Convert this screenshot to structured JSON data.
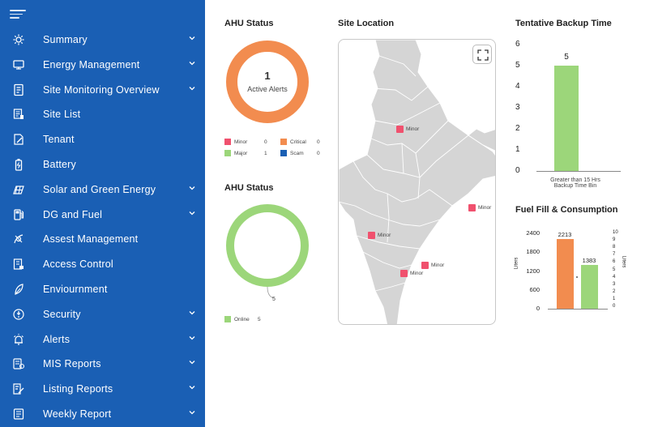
{
  "sidebar": {
    "items": [
      {
        "label": "Summary",
        "icon": "gear-icon",
        "has_chevron": true
      },
      {
        "label": "Energy Management",
        "icon": "energy-monitor-icon",
        "has_chevron": true
      },
      {
        "label": "Site Monitoring Overview",
        "icon": "document-icon",
        "has_chevron": true
      },
      {
        "label": "Site List",
        "icon": "list-icon",
        "has_chevron": false
      },
      {
        "label": "Tenant",
        "icon": "edit-document-icon",
        "has_chevron": false
      },
      {
        "label": "Battery",
        "icon": "battery-icon",
        "has_chevron": false
      },
      {
        "label": "Solar and Green Energy",
        "icon": "solar-icon",
        "has_chevron": true
      },
      {
        "label": "DG and Fuel",
        "icon": "fuel-icon",
        "has_chevron": true
      },
      {
        "label": "Assest Management",
        "icon": "satellite-icon",
        "has_chevron": false
      },
      {
        "label": "Access Control",
        "icon": "access-icon",
        "has_chevron": false
      },
      {
        "label": "Enviournment",
        "icon": "leaf-icon",
        "has_chevron": false
      },
      {
        "label": "Security",
        "icon": "security-icon",
        "has_chevron": true
      },
      {
        "label": "Alerts",
        "icon": "alarm-icon",
        "has_chevron": true
      },
      {
        "label": "MIS Reports",
        "icon": "report-icon",
        "has_chevron": true
      },
      {
        "label": "Listing Reports",
        "icon": "edit-list-icon",
        "has_chevron": true
      },
      {
        "label": "Weekly Report",
        "icon": "calendar-report-icon",
        "has_chevron": true
      }
    ]
  },
  "ahu_alerts": {
    "title": "AHU Status",
    "count": "1",
    "center_label": "Active Alerts",
    "ring_color": "#f28c4f",
    "legend": [
      {
        "label": "Minor",
        "value": "0",
        "color": "#f0516e"
      },
      {
        "label": "Critical",
        "value": "0",
        "color": "#f28c4f"
      },
      {
        "label": "Major",
        "value": "1",
        "color": "#9cd67a"
      },
      {
        "label": "Scam",
        "value": "0",
        "color": "#1a5fb4"
      }
    ]
  },
  "ahu_status": {
    "title": "AHU Status",
    "ring_color": "#9cd67a",
    "callout_value": "5",
    "legend": [
      {
        "label": "Online",
        "value": "5",
        "color": "#9cd67a"
      }
    ]
  },
  "site_location": {
    "title": "Site Location",
    "markers": [
      {
        "label": "Minor"
      },
      {
        "label": "Minor"
      },
      {
        "label": "Minor"
      },
      {
        "label": "Minor"
      },
      {
        "label": "Minor"
      }
    ]
  },
  "backup_time": {
    "title": "Tentative Backup Time",
    "chart_data": {
      "type": "bar",
      "categories": [
        "Greater than 15 Hrs Backup Time Bin"
      ],
      "values": [
        5
      ],
      "data_labels": [
        "5"
      ],
      "ylim": [
        0,
        6
      ],
      "yticks": [
        "0",
        "1",
        "2",
        "3",
        "4",
        "5",
        "6"
      ],
      "color": "#9cd67a"
    },
    "category_lines": [
      "Greater than 15 Hrs",
      "Backup Time Bin"
    ]
  },
  "fuel": {
    "title": "Fuel Fill & Consumption",
    "chart_data": {
      "type": "bar",
      "series": [
        {
          "values": [
            2213
          ],
          "color": "#f28c4f"
        },
        {
          "values": [
            1383
          ],
          "color": "#9cd67a"
        }
      ],
      "data_labels": [
        "2213",
        "1383"
      ],
      "ylabel": "Liters",
      "ylabel_right": "Liters",
      "ylim": [
        0,
        2400
      ],
      "yticks": [
        "0",
        "600",
        "1200",
        "1800",
        "2400"
      ],
      "ylim_right": [
        0,
        10
      ],
      "yticks_right": [
        "0",
        "1",
        "2",
        "3",
        "4",
        "5",
        "6",
        "7",
        "8",
        "9",
        "10"
      ]
    }
  }
}
